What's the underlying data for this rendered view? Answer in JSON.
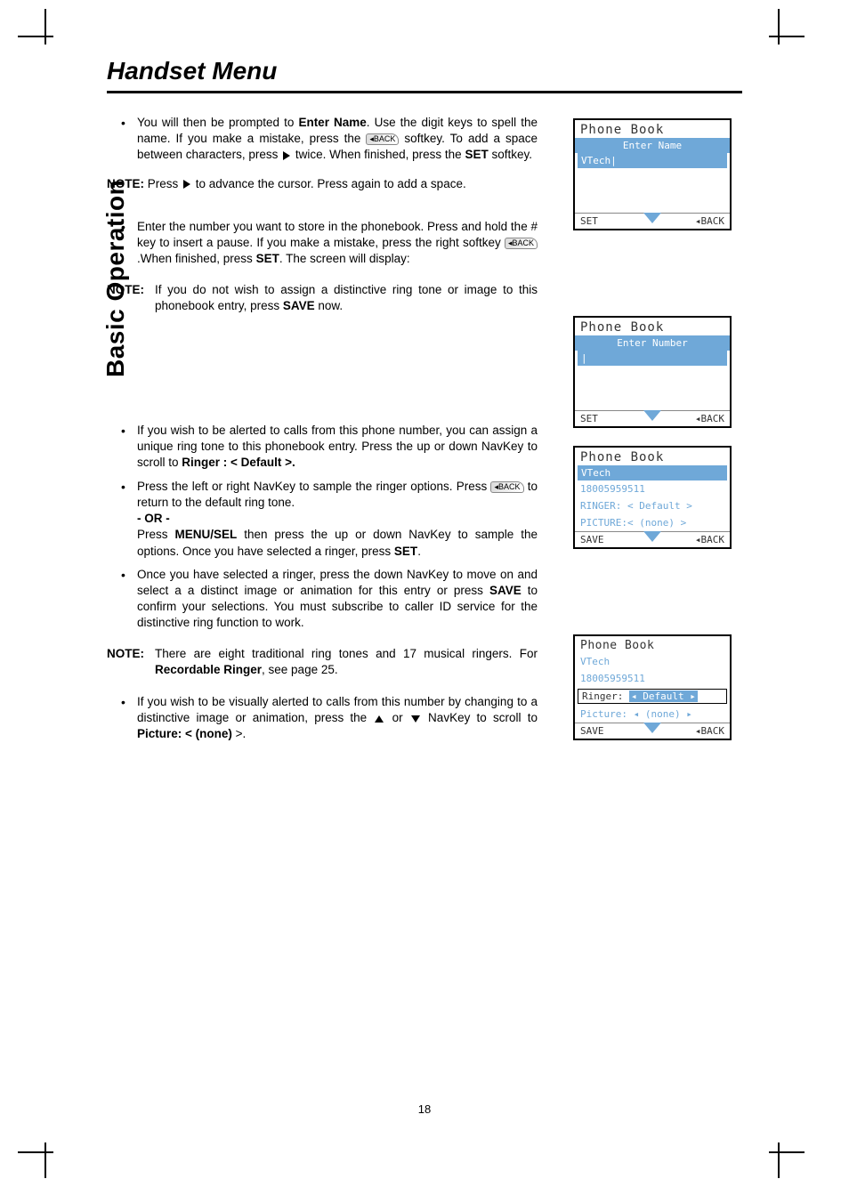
{
  "page": {
    "title": "Handset Menu",
    "side_tab": "Basic Operation",
    "page_number": "18"
  },
  "colors": {
    "screen_accent": "#6fa8d8",
    "text": "#000000",
    "rule": "#000000"
  },
  "body": {
    "b1_pre": "You will then be prompted to ",
    "b1_bold1": "Enter Name",
    "b1_mid": ". Use the digit keys to spell the name. If you make a mistake, press the ",
    "b1_badge": "◂BACK",
    "b1_mid2": " softkey. To add a space between characters, press ",
    "b1_mid3": " twice. When finished, press the ",
    "b1_bold2": "SET",
    "b1_end": " softkey.",
    "note1_label": "NOTE:",
    "note1_pre": " Press ",
    "note1_post": " to advance the cursor. Press again to add a space.",
    "b2_pre": "Enter the number you want to store in the phonebook. Press and hold the # key to insert a pause. If you make a mistake, press the right softkey ",
    "b2_badge": "◂BACK",
    "b2_mid": " .When finished, press ",
    "b2_bold": "SET",
    "b2_end": ". The screen will display:",
    "note2_label": "NOTE:",
    "note2_pre": "If you do not wish to assign a distinctive ring tone or image to this phonebook entry, press ",
    "note2_bold": "SAVE",
    "note2_end": " now.",
    "b3_pre": "If you wish to be alerted to calls from this phone number, you can assign a unique ring tone to this phonebook entry. Press the up or down NavKey to scroll to ",
    "b3_bold": "Ringer : < Default >.",
    "b4_pre": "Press the left or right NavKey to sample the ringer options. Press ",
    "b4_badge": "◂BACK",
    "b4_end": " to return to the default ring tone.",
    "b4_or": "- OR -",
    "b4_p2a": "Press ",
    "b4_p2bold1": "MENU/SEL",
    "b4_p2b": " then press the up or down NavKey to sample the options. Once you have selected a ringer, press ",
    "b4_p2bold2": "SET",
    "b4_p2c": ".",
    "b5_pre": "Once you have selected a ringer, press the down NavKey to move on and select a a distinct image or animation for this entry or press ",
    "b5_bold": "SAVE",
    "b5_end": " to confirm your selections. You must subscribe to caller ID service for the distinctive ring function to work.",
    "note3_label": "NOTE:",
    "note3_pre": "There are eight traditional ring tones and 17 musical ringers. For ",
    "note3_bold": "Recordable Ringer",
    "note3_end": ", see page 25.",
    "b6_pre": "If you wish to be visually alerted to calls from this number by changing to a distinctive image or animation, press the ",
    "b6_mid": " or ",
    "b6_post": " NavKey to scroll to ",
    "b6_bold": "Picture: < (none)",
    "b6_end": " >."
  },
  "screens": {
    "s1": {
      "title": "Phone Book",
      "bar": "Enter Name",
      "line1": "VTech|",
      "footL": "SET",
      "footR": "◂BACK"
    },
    "s2": {
      "title": "Phone Book",
      "bar": "Enter Number",
      "line1": "|",
      "footL": "SET",
      "footR": "◂BACK"
    },
    "s3": {
      "title": "Phone Book",
      "name": "VTech",
      "num": "18005959511",
      "ringer": "RINGER: < Default >",
      "picture": "PICTURE:< (none)  >",
      "footL": "SAVE",
      "footR": "◂BACK"
    },
    "s4": {
      "title": "Phone Book",
      "name": "VTech",
      "num": "18005959511",
      "ringer_pre": "Ringer:",
      "ringer_val": "◂ Default ▸",
      "picture": "Picture: ◂ (none) ▸",
      "footL": "SAVE",
      "footR": "◂BACK"
    }
  }
}
